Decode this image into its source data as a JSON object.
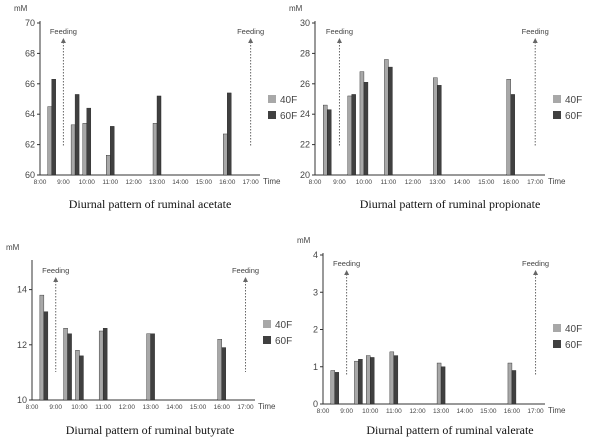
{
  "colors": {
    "40F": "#a8a8a8",
    "60F": "#404040",
    "axis": "#333333",
    "text": "#444444",
    "arrow": "#666666"
  },
  "chart_data": [
    {
      "type": "bar",
      "caption": "Diurnal pattern of ruminal acetate",
      "unit": "mM",
      "xlabel": "Time",
      "ylim": [
        60,
        70
      ],
      "yticks": [
        "60",
        "62",
        "64",
        "66",
        "68",
        "70"
      ],
      "categories": [
        "8:00",
        "9:00",
        "10:00",
        "11:00",
        "12:00",
        "13:00",
        "14:00",
        "15:00",
        "16:00",
        "17:00"
      ],
      "series": [
        {
          "name": "40F",
          "x": [
            "8:30",
            "9:30",
            "10:00",
            "11:00",
            "13:00",
            "16:00"
          ],
          "values": [
            64.5,
            63.3,
            63.4,
            61.3,
            63.4,
            62.7
          ]
        },
        {
          "name": "60F",
          "x": [
            "8:30",
            "9:30",
            "10:00",
            "11:00",
            "13:00",
            "16:00"
          ],
          "values": [
            66.3,
            65.3,
            64.4,
            63.2,
            65.2,
            65.4
          ]
        }
      ],
      "annotations": [
        {
          "text": "Feeding",
          "x": "9:00"
        },
        {
          "text": "Feeding",
          "x": "17:00"
        }
      ],
      "legend": "right"
    },
    {
      "type": "bar",
      "caption": "Diurnal pattern of ruminal propionate",
      "unit": "mM",
      "xlabel": "Time",
      "ylim": [
        20,
        30
      ],
      "yticks": [
        "20",
        "22",
        "24",
        "26",
        "28",
        "30"
      ],
      "categories": [
        "8:00",
        "9:00",
        "10:00",
        "11:00",
        "12:00",
        "13:00",
        "14:00",
        "15:00",
        "16:00",
        "17:00"
      ],
      "series": [
        {
          "name": "40F",
          "x": [
            "8:30",
            "9:30",
            "10:00",
            "11:00",
            "13:00",
            "16:00"
          ],
          "values": [
            24.6,
            25.2,
            26.8,
            27.6,
            26.4,
            26.3
          ]
        },
        {
          "name": "60F",
          "x": [
            "8:30",
            "9:30",
            "10:00",
            "11:00",
            "13:00",
            "16:00"
          ],
          "values": [
            24.3,
            25.3,
            26.1,
            27.1,
            25.9,
            25.3
          ]
        }
      ],
      "annotations": [
        {
          "text": "Feeding",
          "x": "9:00"
        },
        {
          "text": "Feeding",
          "x": "17:00"
        }
      ],
      "legend": "right"
    },
    {
      "type": "bar",
      "caption": "Diurnal pattern of ruminal butyrate",
      "unit": "mM",
      "xlabel": "Time",
      "ylim": [
        10,
        15
      ],
      "yticks": [
        "10",
        "12",
        "14"
      ],
      "categories": [
        "8:00",
        "9:00",
        "10:00",
        "11:00",
        "12:00",
        "13:00",
        "14:00",
        "15:00",
        "16:00",
        "17:00"
      ],
      "series": [
        {
          "name": "40F",
          "x": [
            "8:30",
            "9:30",
            "10:00",
            "11:00",
            "13:00",
            "16:00"
          ],
          "values": [
            13.8,
            12.6,
            11.8,
            12.5,
            12.4,
            12.2
          ]
        },
        {
          "name": "60F",
          "x": [
            "8:30",
            "9:30",
            "10:00",
            "11:00",
            "13:00",
            "16:00"
          ],
          "values": [
            13.2,
            12.4,
            11.6,
            12.6,
            12.4,
            11.9
          ]
        }
      ],
      "annotations": [
        {
          "text": "Feeding",
          "x": "9:00"
        },
        {
          "text": "Feeding",
          "x": "17:00"
        }
      ],
      "legend": "right"
    },
    {
      "type": "bar",
      "caption": "Diurnal pattern of ruminal valerate",
      "unit": "mM",
      "xlabel": "Time",
      "ylim": [
        0,
        4
      ],
      "yticks": [
        "0",
        "1",
        "2",
        "3",
        "4"
      ],
      "categories": [
        "8:00",
        "9:00",
        "10:00",
        "11:00",
        "12:00",
        "13:00",
        "14:00",
        "15:00",
        "16:00",
        "17:00"
      ],
      "series": [
        {
          "name": "40F",
          "x": [
            "8:30",
            "9:30",
            "10:00",
            "11:00",
            "13:00",
            "16:00"
          ],
          "values": [
            0.9,
            1.15,
            1.3,
            1.4,
            1.1,
            1.1
          ]
        },
        {
          "name": "60F",
          "x": [
            "8:30",
            "9:30",
            "10:00",
            "11:00",
            "13:00",
            "16:00"
          ],
          "values": [
            0.85,
            1.2,
            1.25,
            1.3,
            1.0,
            0.9
          ]
        }
      ],
      "annotations": [
        {
          "text": "Feeding",
          "x": "9:00"
        },
        {
          "text": "Feeding",
          "x": "17:00"
        }
      ],
      "legend": "right"
    }
  ]
}
